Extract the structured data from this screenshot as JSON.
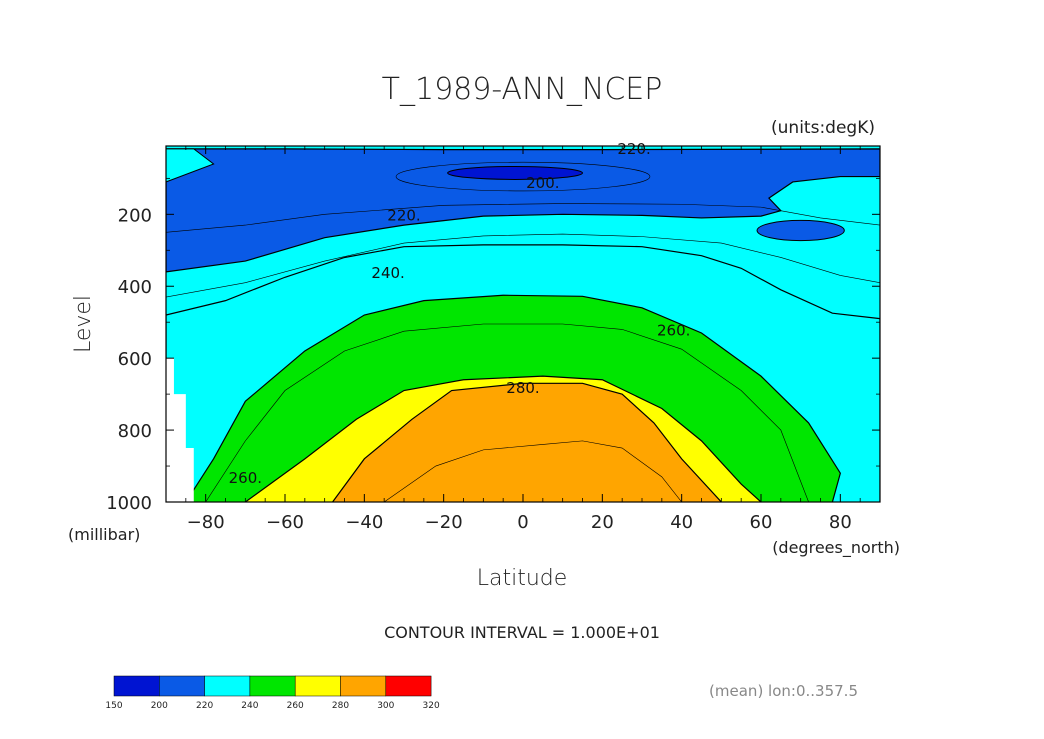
{
  "chart_data": {
    "type": "contour",
    "title": "T_1989-ANN_NCEP",
    "units_label": "(units:degK)",
    "xlabel": "Latitude",
    "x_units_label": "(degrees_north)",
    "ylabel": "Level",
    "y_units_label": "(millibar)",
    "xlim": [
      -90,
      90
    ],
    "ylim": [
      1000,
      10
    ],
    "x_ticks": [
      -80,
      -60,
      -40,
      -20,
      0,
      20,
      40,
      60,
      80
    ],
    "x_tick_labels": [
      "−80",
      "−60",
      "−40",
      "−20",
      "0",
      "20",
      "40",
      "60",
      "80"
    ],
    "y_ticks": [
      200,
      400,
      600,
      800,
      1000
    ],
    "y_tick_labels": [
      "200",
      "400",
      "600",
      "800",
      "1000"
    ],
    "contour_interval_text": "CONTOUR INTERVAL = 1.000E+01",
    "footnote": "(mean) lon:0..357.5",
    "contour_labels": [
      {
        "text": "220.",
        "lat": 28,
        "level": 15
      },
      {
        "text": "200.",
        "lat": 5,
        "level": 110
      },
      {
        "text": "220.",
        "lat": -30,
        "level": 200
      },
      {
        "text": "240.",
        "lat": -34,
        "level": 360
      },
      {
        "text": "260.",
        "lat": 38,
        "level": 520
      },
      {
        "text": "280.",
        "lat": 0,
        "level": 680
      },
      {
        "text": "260.",
        "lat": -70,
        "level": 930
      }
    ],
    "bands": [
      {
        "range": "200-220",
        "color": "#0a5ae6",
        "boundary": [
          [
            -90,
            360
          ],
          [
            -70,
            330
          ],
          [
            -50,
            265
          ],
          [
            -30,
            230
          ],
          [
            -10,
            205
          ],
          [
            10,
            200
          ],
          [
            30,
            203
          ],
          [
            45,
            210
          ],
          [
            60,
            205
          ],
          [
            65,
            190
          ],
          [
            62,
            155
          ],
          [
            68,
            110
          ],
          [
            80,
            95
          ],
          [
            90,
            95
          ]
        ]
      },
      {
        "range": "220-240",
        "color": "#00ffff",
        "boundary": [
          [
            -90,
            480
          ],
          [
            -75,
            440
          ],
          [
            -60,
            375
          ],
          [
            -45,
            320
          ],
          [
            -30,
            290
          ],
          [
            -10,
            285
          ],
          [
            10,
            285
          ],
          [
            30,
            290
          ],
          [
            45,
            315
          ],
          [
            55,
            350
          ],
          [
            65,
            410
          ],
          [
            78,
            475
          ],
          [
            90,
            490
          ]
        ]
      },
      {
        "range": "240-260",
        "color": "#00e600",
        "boundary": [
          [
            -85,
            1000
          ],
          [
            -78,
            880
          ],
          [
            -70,
            720
          ],
          [
            -55,
            580
          ],
          [
            -40,
            480
          ],
          [
            -25,
            440
          ],
          [
            -5,
            425
          ],
          [
            15,
            428
          ],
          [
            30,
            460
          ],
          [
            45,
            530
          ],
          [
            60,
            650
          ],
          [
            72,
            780
          ],
          [
            80,
            920
          ],
          [
            78,
            1000
          ]
        ]
      },
      {
        "range": "260-280",
        "color": "#ffff00",
        "boundary": [
          [
            -70,
            1000
          ],
          [
            -55,
            880
          ],
          [
            -42,
            770
          ],
          [
            -30,
            690
          ],
          [
            -15,
            660
          ],
          [
            5,
            650
          ],
          [
            20,
            660
          ],
          [
            35,
            740
          ],
          [
            45,
            830
          ],
          [
            55,
            950
          ],
          [
            60,
            1000
          ]
        ]
      },
      {
        "range": "280-300",
        "color": "#ffa500",
        "boundary": [
          [
            -48,
            1000
          ],
          [
            -40,
            880
          ],
          [
            -28,
            770
          ],
          [
            -18,
            690
          ],
          [
            0,
            670
          ],
          [
            15,
            670
          ],
          [
            25,
            700
          ],
          [
            33,
            780
          ],
          [
            40,
            880
          ],
          [
            50,
            1000
          ]
        ]
      }
    ],
    "low_core": {
      "range": "<200",
      "color": "#0014d2",
      "lat_center": -2,
      "lat_halfwidth": 17,
      "level_center": 85,
      "level_halfwidth": 18
    },
    "right_blob": {
      "range": "200-220",
      "color": "#0a5ae6",
      "lat_center": 70,
      "lat_halfwidth": 11,
      "level_center": 245,
      "level_halfwidth": 28
    },
    "thin_contours": [
      {
        "value": "210",
        "points": [
          [
            -90,
            250
          ],
          [
            -70,
            230
          ],
          [
            -50,
            200
          ],
          [
            -20,
            175
          ],
          [
            10,
            170
          ],
          [
            40,
            172
          ],
          [
            60,
            180
          ],
          [
            75,
            210
          ],
          [
            90,
            230
          ]
        ]
      },
      {
        "value": "230",
        "points": [
          [
            -90,
            430
          ],
          [
            -70,
            390
          ],
          [
            -50,
            330
          ],
          [
            -30,
            280
          ],
          [
            -10,
            260
          ],
          [
            10,
            255
          ],
          [
            30,
            262
          ],
          [
            50,
            280
          ],
          [
            65,
            320
          ],
          [
            80,
            370
          ],
          [
            90,
            390
          ]
        ]
      },
      {
        "value": "250",
        "points": [
          [
            -80,
            1000
          ],
          [
            -70,
            830
          ],
          [
            -60,
            690
          ],
          [
            -45,
            580
          ],
          [
            -30,
            525
          ],
          [
            -10,
            505
          ],
          [
            10,
            505
          ],
          [
            25,
            520
          ],
          [
            40,
            575
          ],
          [
            55,
            690
          ],
          [
            65,
            800
          ],
          [
            72,
            1000
          ]
        ]
      },
      {
        "value": "290",
        "points": [
          [
            -35,
            1000
          ],
          [
            -22,
            900
          ],
          [
            -10,
            855
          ],
          [
            5,
            840
          ],
          [
            15,
            830
          ],
          [
            25,
            850
          ],
          [
            35,
            930
          ],
          [
            40,
            1000
          ]
        ]
      }
    ],
    "legend": {
      "colors": [
        "#0014d2",
        "#0a5ae6",
        "#00ffff",
        "#00e600",
        "#ffff00",
        "#ffa500",
        "#ff0000"
      ],
      "labels": [
        "150",
        "200",
        "220",
        "240",
        "260",
        "280",
        "300",
        "320"
      ]
    }
  }
}
